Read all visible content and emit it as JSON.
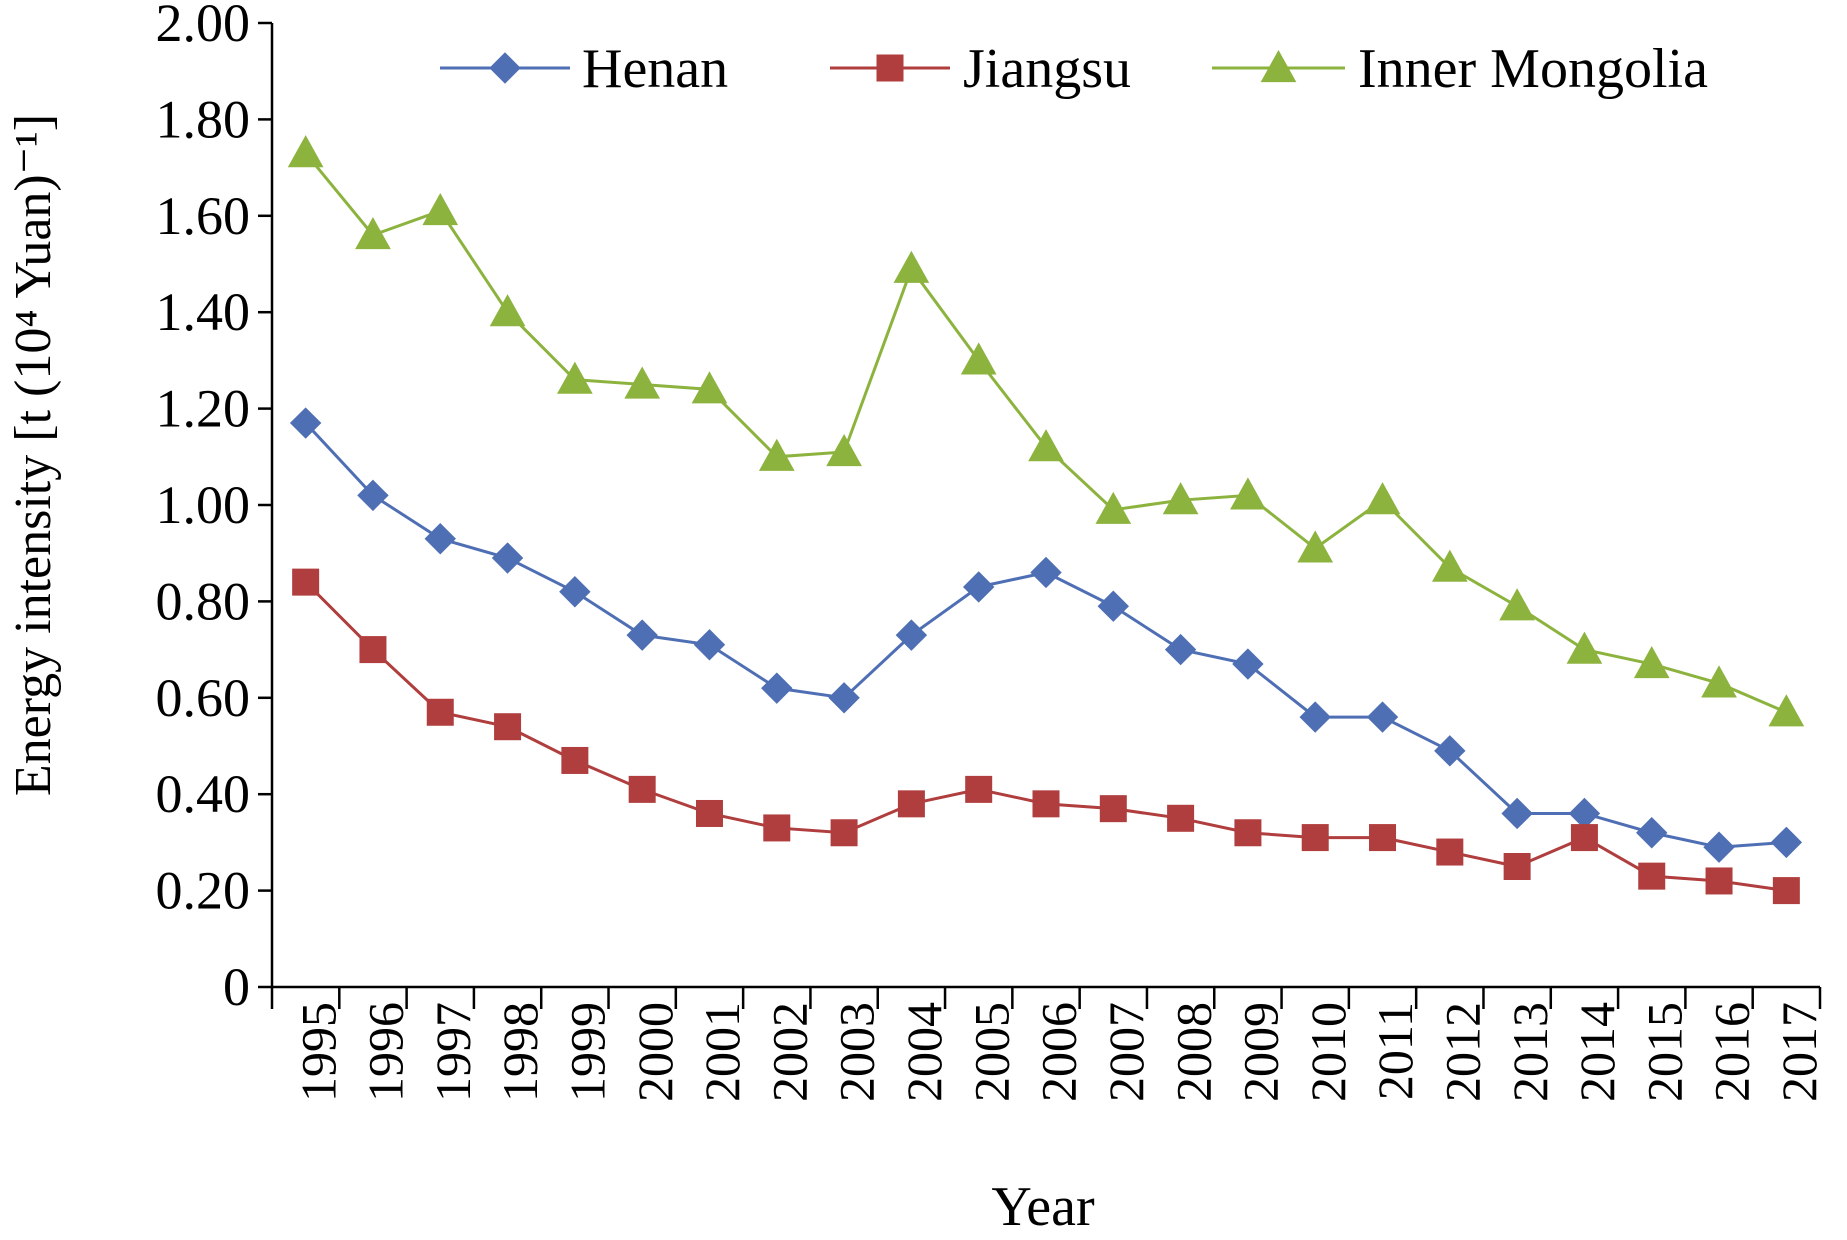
{
  "chart_data": {
    "type": "line",
    "title": "",
    "xlabel": "Year",
    "ylabel": "Energy intensity [t (10⁴ Yuan)⁻¹]",
    "ylim": [
      0,
      2.0
    ],
    "y_ticks": [
      "0",
      "0.20",
      "0.40",
      "0.60",
      "0.80",
      "1.00",
      "1.20",
      "1.40",
      "1.60",
      "1.80",
      "2.00"
    ],
    "x_tick_labels": [
      "1995",
      "1996",
      "1997",
      "1998",
      "1999",
      "2000",
      "2001",
      "2002",
      "2003",
      "2004",
      "2005",
      "2006",
      "2007",
      "2008",
      "2009",
      "2010",
      "2011",
      "2012",
      "2013",
      "2014",
      "2015",
      "2016",
      "2017"
    ],
    "x": [
      1995,
      1996,
      1997,
      1998,
      1999,
      2000,
      2001,
      2002,
      2003,
      2004,
      2005,
      2006,
      2007,
      2008,
      2009,
      2010,
      2011,
      2012,
      2013,
      2014,
      2015,
      2016,
      2017
    ],
    "grid": false,
    "legend_position": "top",
    "series": [
      {
        "name": "Henan",
        "color": "#4f6fb5",
        "marker": "diamond",
        "values": [
          1.17,
          1.02,
          0.93,
          0.89,
          0.82,
          0.73,
          0.71,
          0.62,
          0.6,
          0.73,
          0.83,
          0.86,
          0.79,
          0.7,
          0.67,
          0.56,
          0.56,
          0.49,
          0.36,
          0.36,
          0.32,
          0.29,
          0.3
        ]
      },
      {
        "name": "Jiangsu",
        "color": "#b03e3e",
        "marker": "square",
        "values": [
          0.84,
          0.7,
          0.57,
          0.54,
          0.47,
          0.41,
          0.36,
          0.33,
          0.32,
          0.38,
          0.41,
          0.38,
          0.37,
          0.35,
          0.32,
          0.31,
          0.31,
          0.28,
          0.25,
          0.31,
          0.23,
          0.22,
          0.2
        ]
      },
      {
        "name": "Inner Mongolia",
        "color": "#8db33f",
        "marker": "triangle",
        "values": [
          1.73,
          1.56,
          1.61,
          1.4,
          1.26,
          1.25,
          1.24,
          1.1,
          1.11,
          1.49,
          1.3,
          1.12,
          0.99,
          1.01,
          1.02,
          0.91,
          1.01,
          0.87,
          0.79,
          0.7,
          0.67,
          0.63,
          0.57
        ]
      }
    ]
  }
}
